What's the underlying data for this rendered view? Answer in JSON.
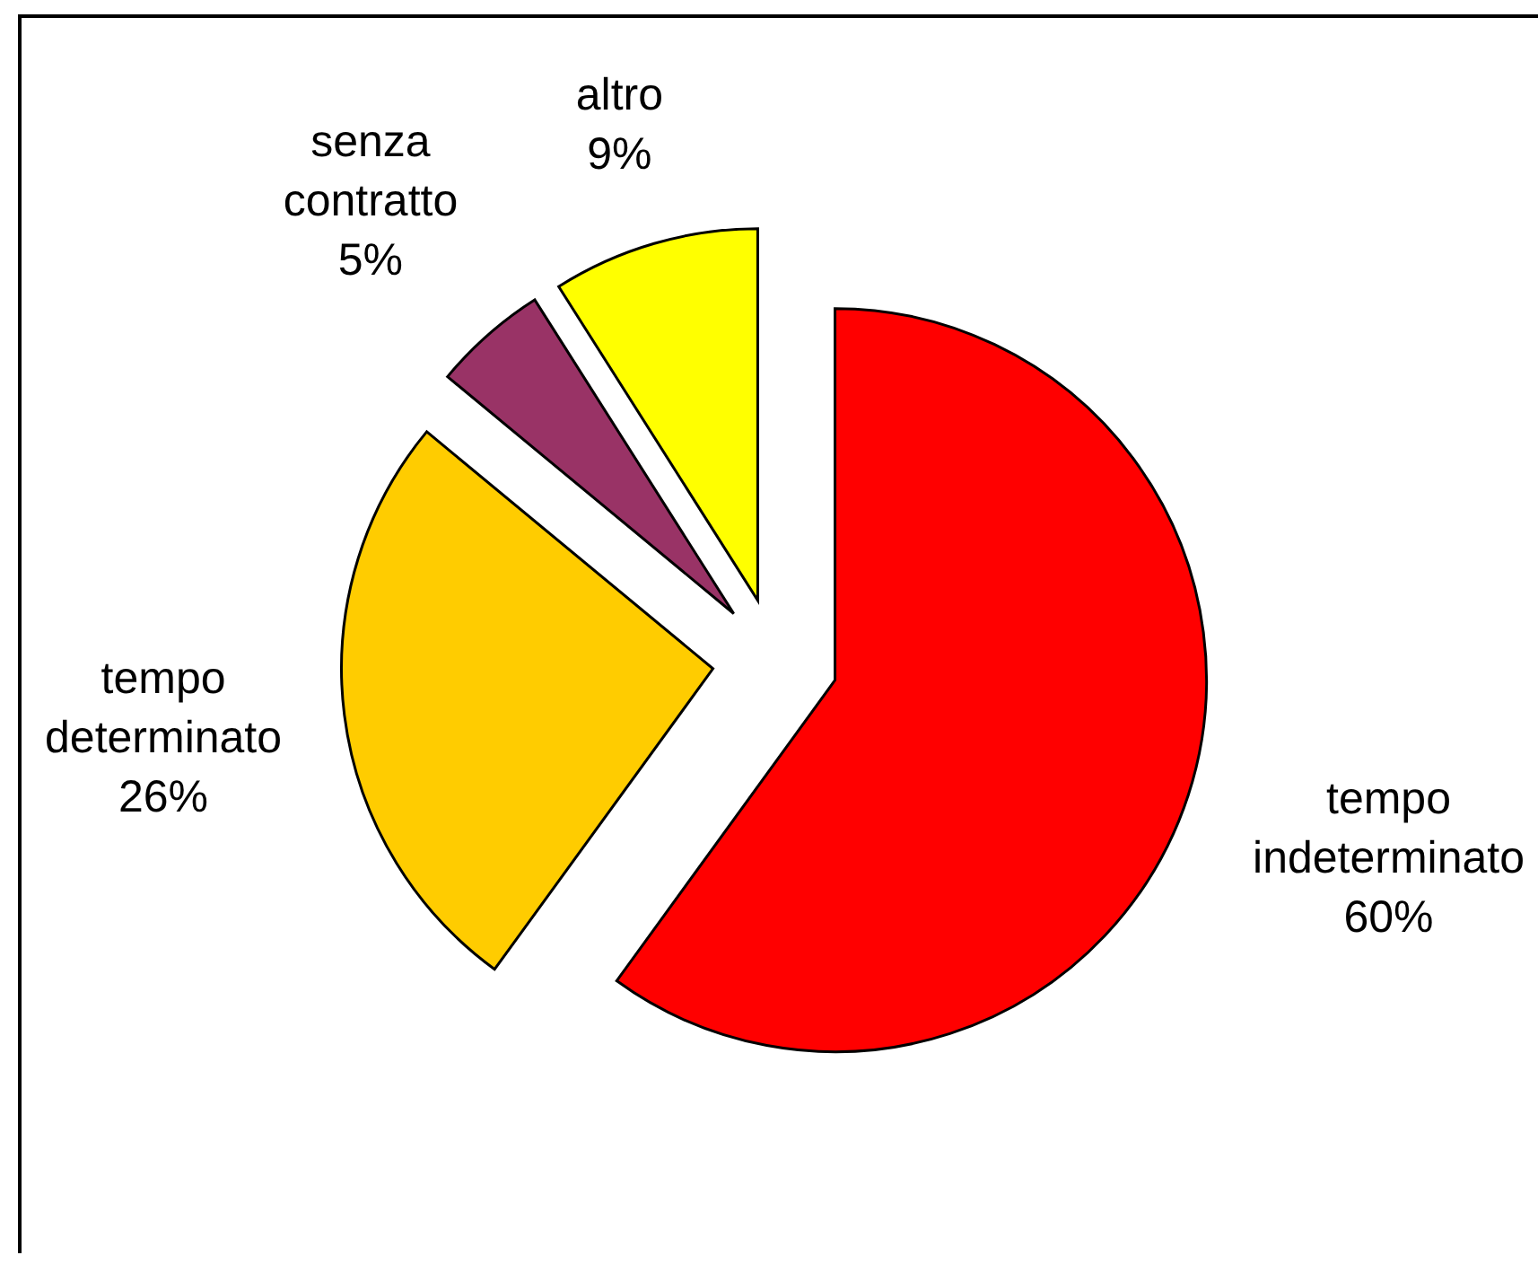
{
  "chart_data": {
    "type": "pie",
    "categories": [
      "tempo indeterminato",
      "tempo determinato",
      "senza contratto",
      "altro"
    ],
    "values": [
      60,
      26,
      5,
      9
    ],
    "value_labels": [
      "60%",
      "26%",
      "5%",
      "9%"
    ],
    "colors": [
      "#ff0000",
      "#ffcc00",
      "#993366",
      "#ffff00"
    ],
    "legend": false
  }
}
